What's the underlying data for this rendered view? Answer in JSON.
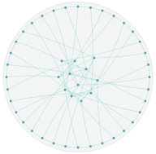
{
  "chart_data": {
    "type": "graph",
    "tick_labels": false,
    "nodes": {
      "color": "#5f9fb0",
      "x": [
        94,
        93.3,
        91.4,
        88.1,
        83.7,
        78.3,
        72,
        65,
        57.7,
        50,
        42.3,
        35,
        28,
        21.7,
        16.3,
        11.9,
        8.6,
        6.7,
        6,
        6.7,
        8.6,
        11.9,
        16.3,
        21.7,
        28,
        35,
        42.3,
        50,
        57.7,
        65,
        72,
        78.3,
        83.7,
        88.1,
        91.4,
        93.3,
        50,
        45,
        55,
        42,
        58,
        48,
        38,
        62,
        52,
        40,
        60,
        46
      ],
      "y": [
        50,
        57.7,
        65,
        72,
        78.3,
        83.7,
        88.1,
        91.4,
        93.3,
        94,
        93.3,
        91.4,
        88.1,
        83.7,
        78.3,
        72,
        65,
        57.7,
        50,
        42.3,
        35,
        28,
        21.7,
        16.3,
        11.9,
        8.6,
        6.7,
        6,
        6.7,
        8.6,
        11.9,
        16.3,
        21.7,
        28,
        35,
        42.3,
        55,
        48,
        45,
        58,
        60,
        40,
        50,
        52,
        65,
        40,
        38,
        62
      ]
    },
    "links": {
      "color": "#a9d6d6",
      "pairs": [
        [
          0,
          36
        ],
        [
          1,
          37
        ],
        [
          2,
          38
        ],
        [
          3,
          39
        ],
        [
          4,
          40
        ],
        [
          5,
          41
        ],
        [
          6,
          42
        ],
        [
          7,
          43
        ],
        [
          8,
          44
        ],
        [
          9,
          45
        ],
        [
          10,
          46
        ],
        [
          11,
          47
        ],
        [
          12,
          36
        ],
        [
          13,
          37
        ],
        [
          14,
          38
        ],
        [
          15,
          39
        ],
        [
          16,
          40
        ],
        [
          17,
          41
        ],
        [
          18,
          42
        ],
        [
          19,
          43
        ],
        [
          20,
          44
        ],
        [
          21,
          45
        ],
        [
          22,
          46
        ],
        [
          23,
          47
        ],
        [
          24,
          36
        ],
        [
          25,
          37
        ],
        [
          26,
          38
        ],
        [
          27,
          39
        ],
        [
          28,
          40
        ],
        [
          29,
          41
        ],
        [
          30,
          42
        ],
        [
          31,
          43
        ],
        [
          32,
          44
        ],
        [
          33,
          45
        ],
        [
          34,
          46
        ],
        [
          35,
          47
        ],
        [
          0,
          1
        ],
        [
          1,
          2
        ],
        [
          2,
          3
        ],
        [
          3,
          4
        ],
        [
          4,
          5
        ],
        [
          5,
          6
        ],
        [
          6,
          7
        ],
        [
          7,
          8
        ],
        [
          8,
          9
        ],
        [
          9,
          10
        ],
        [
          10,
          11
        ],
        [
          11,
          12
        ],
        [
          12,
          13
        ],
        [
          13,
          14
        ],
        [
          14,
          15
        ],
        [
          15,
          16
        ],
        [
          16,
          17
        ],
        [
          17,
          18
        ],
        [
          18,
          19
        ],
        [
          19,
          20
        ],
        [
          20,
          21
        ],
        [
          21,
          22
        ],
        [
          22,
          23
        ],
        [
          23,
          24
        ],
        [
          24,
          25
        ],
        [
          25,
          26
        ],
        [
          26,
          27
        ],
        [
          27,
          28
        ],
        [
          28,
          29
        ],
        [
          29,
          30
        ],
        [
          30,
          31
        ],
        [
          31,
          32
        ],
        [
          32,
          33
        ],
        [
          33,
          34
        ],
        [
          34,
          35
        ],
        [
          35,
          0
        ],
        [
          36,
          37
        ],
        [
          36,
          38
        ],
        [
          36,
          39
        ],
        [
          36,
          40
        ],
        [
          37,
          41
        ],
        [
          37,
          42
        ],
        [
          38,
          43
        ],
        [
          38,
          45
        ],
        [
          39,
          44
        ],
        [
          40,
          47
        ],
        [
          41,
          45
        ],
        [
          42,
          46
        ],
        [
          43,
          44
        ],
        [
          46,
          47
        ],
        [
          37,
          38
        ],
        [
          41,
          42
        ]
      ]
    }
  }
}
